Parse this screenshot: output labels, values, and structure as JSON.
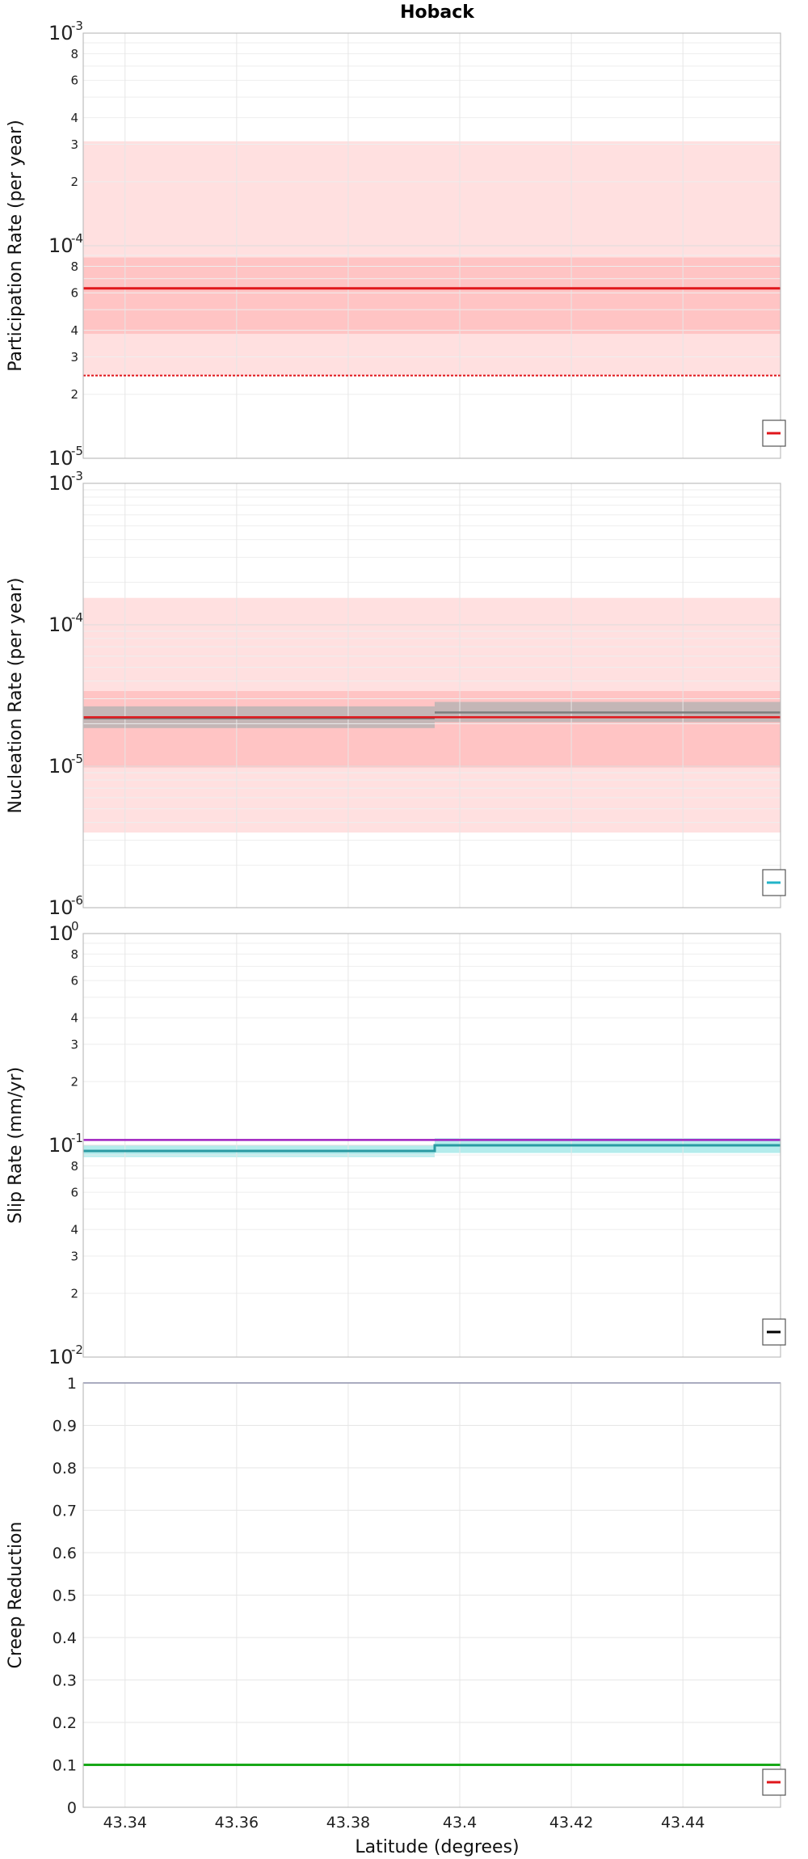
{
  "title": "Hoback",
  "shared_xlabel": "Latitude (degrees)",
  "x_ticks": [
    "43.34",
    "43.36",
    "43.38",
    "43.4",
    "43.42",
    "43.44"
  ],
  "chart_data": [
    {
      "type": "line",
      "id": "participation",
      "ylabel": "Participation Rate (per year)",
      "yscale": "log",
      "xlim": [
        43.3325,
        43.4575
      ],
      "ylim": [
        1e-05,
        0.001
      ],
      "y_tick_labels": [
        {
          "v": 0.001,
          "base": "10",
          "exp": "-3"
        },
        {
          "v": 0.0008,
          "text": "8"
        },
        {
          "v": 0.0006,
          "text": "6"
        },
        {
          "v": 0.0004,
          "text": "4"
        },
        {
          "v": 0.0003,
          "text": "3"
        },
        {
          "v": 0.0002,
          "text": "2"
        },
        {
          "v": 0.0001,
          "base": "10",
          "exp": "-4"
        },
        {
          "v": 8e-05,
          "text": "8"
        },
        {
          "v": 6e-05,
          "text": "6"
        },
        {
          "v": 4e-05,
          "text": "4"
        },
        {
          "v": 3e-05,
          "text": "3"
        },
        {
          "v": 2e-05,
          "text": "2"
        },
        {
          "v": 1e-05,
          "base": "10",
          "exp": "-5"
        }
      ],
      "bands": [
        {
          "x0": 43.3325,
          "x1": 43.4575,
          "lo": 2.45e-05,
          "hi": 0.00031,
          "color": "#ffe0e0"
        },
        {
          "x0": 43.3325,
          "x1": 43.4575,
          "lo": 3.85e-05,
          "hi": 8.8e-05,
          "color": "#ffc4c4"
        }
      ],
      "series": [
        {
          "x": [
            43.3325,
            43.4575
          ],
          "y": [
            6.3e-05,
            6.3e-05
          ],
          "color": "#e0161b",
          "width": 3,
          "dash": ""
        },
        {
          "x": [
            43.3325,
            43.4575
          ],
          "y": [
            2.45e-05,
            2.45e-05
          ],
          "color": "#e0161b",
          "width": 2,
          "dash": "3,2"
        }
      ],
      "legend_swatch": "#e0161b"
    },
    {
      "type": "line",
      "id": "nucleation",
      "ylabel": "Nucleation Rate (per year)",
      "yscale": "log",
      "xlim": [
        43.3325,
        43.4575
      ],
      "ylim": [
        1e-06,
        0.001
      ],
      "y_tick_labels": [
        {
          "v": 0.001,
          "base": "10",
          "exp": "-3"
        },
        {
          "v": 0.0001,
          "base": "10",
          "exp": "-4"
        },
        {
          "v": 1e-05,
          "base": "10",
          "exp": "-5"
        },
        {
          "v": 1e-06,
          "base": "10",
          "exp": "-6"
        }
      ],
      "bands": [
        {
          "x0": 43.3325,
          "x1": 43.4575,
          "lo": 3.4e-06,
          "hi": 0.000155,
          "color": "#ffe0e0"
        },
        {
          "x0": 43.3325,
          "x1": 43.4575,
          "lo": 9.8e-06,
          "hi": 3.4e-05,
          "color": "#ffc4c4"
        },
        {
          "x0": 43.3325,
          "x1": 43.3955,
          "lo": 1.86e-05,
          "hi": 2.65e-05,
          "color": "#c4b6b6"
        },
        {
          "x0": 43.3955,
          "x1": 43.4575,
          "lo": 2.05e-05,
          "hi": 2.85e-05,
          "color": "#c4b6b6"
        }
      ],
      "series": [
        {
          "x": [
            43.3325,
            43.3955
          ],
          "y": [
            2.18e-05,
            2.18e-05
          ],
          "color": "#7d7d7d",
          "width": 2.5,
          "dash": ""
        },
        {
          "x": [
            43.3955,
            43.4575
          ],
          "y": [
            2.4e-05,
            2.4e-05
          ],
          "color": "#7d7d7d",
          "width": 2.5,
          "dash": ""
        },
        {
          "x": [
            43.3325,
            43.4575
          ],
          "y": [
            2.22e-05,
            2.22e-05
          ],
          "color": "#e0161b",
          "width": 2.5,
          "dash": ""
        }
      ],
      "legend_swatch": "#22b4c8"
    },
    {
      "type": "line",
      "id": "slip",
      "ylabel": "Slip Rate (mm/yr)",
      "yscale": "log",
      "xlim": [
        43.3325,
        43.4575
      ],
      "ylim": [
        0.01,
        1
      ],
      "y_tick_labels": [
        {
          "v": 1,
          "base": "10",
          "exp": "0"
        },
        {
          "v": 0.8,
          "text": "8"
        },
        {
          "v": 0.6,
          "text": "6"
        },
        {
          "v": 0.4,
          "text": "4"
        },
        {
          "v": 0.3,
          "text": "3"
        },
        {
          "v": 0.2,
          "text": "2"
        },
        {
          "v": 0.1,
          "base": "10",
          "exp": "-1"
        },
        {
          "v": 0.08,
          "text": "8"
        },
        {
          "v": 0.06,
          "text": "6"
        },
        {
          "v": 0.04,
          "text": "4"
        },
        {
          "v": 0.03,
          "text": "3"
        },
        {
          "v": 0.02,
          "text": "2"
        },
        {
          "v": 0.01,
          "base": "10",
          "exp": "-2"
        }
      ],
      "bands": [
        {
          "x0": 43.3325,
          "x1": 43.3955,
          "lo": 0.088,
          "hi": 0.1,
          "color": "#b4ecec"
        },
        {
          "x0": 43.3955,
          "x1": 43.4575,
          "lo": 0.092,
          "hi": 0.108,
          "color": "#b4ecec"
        }
      ],
      "series": [
        {
          "x": [
            43.3325,
            43.4575
          ],
          "y": [
            0.106,
            0.106
          ],
          "color": "#a020c0",
          "width": 2.5,
          "dash": ""
        },
        {
          "x": [
            43.3325,
            43.3955,
            43.3955,
            43.4575
          ],
          "y": [
            0.094,
            0.094,
            0.1,
            0.1
          ],
          "color": "#2a9aa2",
          "width": 3,
          "dash": ""
        }
      ],
      "legend_swatch": "#000000"
    },
    {
      "type": "line",
      "id": "creep",
      "ylabel": "Creep Reduction",
      "yscale": "linear",
      "xlim": [
        43.3325,
        43.4575
      ],
      "ylim": [
        0,
        1
      ],
      "y_tick_labels": [
        {
          "v": 1,
          "text": "1"
        },
        {
          "v": 0.9,
          "text": "0.9"
        },
        {
          "v": 0.8,
          "text": "0.8"
        },
        {
          "v": 0.7,
          "text": "0.7"
        },
        {
          "v": 0.6,
          "text": "0.6"
        },
        {
          "v": 0.5,
          "text": "0.5"
        },
        {
          "v": 0.4,
          "text": "0.4"
        },
        {
          "v": 0.3,
          "text": "0.3"
        },
        {
          "v": 0.2,
          "text": "0.2"
        },
        {
          "v": 0.1,
          "text": "0.1"
        },
        {
          "v": 0,
          "text": "0"
        }
      ],
      "bands": [],
      "series": [
        {
          "x": [
            43.3325,
            43.4575
          ],
          "y": [
            1,
            1
          ],
          "color": "#1e2a8a",
          "width": 1.5,
          "dash": ""
        },
        {
          "x": [
            43.3325,
            43.4575
          ],
          "y": [
            0.1,
            0.1
          ],
          "color": "#18a818",
          "width": 3,
          "dash": ""
        }
      ],
      "legend_swatch": "#e0161b"
    }
  ]
}
